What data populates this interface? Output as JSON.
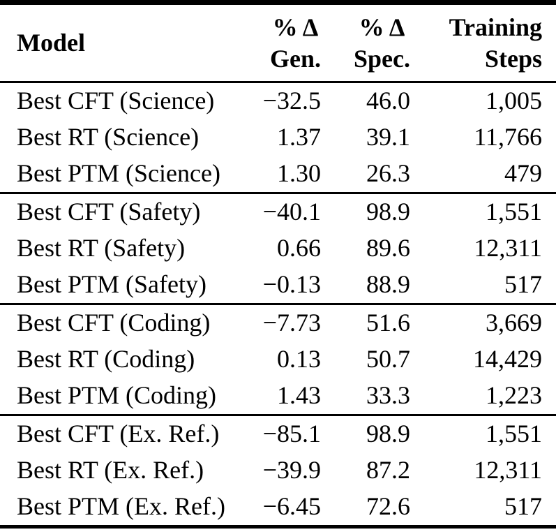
{
  "page": {
    "background_color": "#ffffff",
    "text_color": "#000000",
    "rule_color": "#000000"
  },
  "table": {
    "header": {
      "model": "Model",
      "gen_line1": "% Δ",
      "gen_line2": "Gen.",
      "spec_line1": "% Δ",
      "spec_line2": "Spec.",
      "train_line1": "Training",
      "train_line2": "Steps"
    },
    "groups": [
      {
        "name": "Science",
        "rows": [
          {
            "model": "Best CFT (Science)",
            "gen": "−32.5",
            "spec": "46.0",
            "steps": "1,005"
          },
          {
            "model": "Best RT (Science)",
            "gen": "1.37",
            "spec": "39.1",
            "steps": "11,766"
          },
          {
            "model": "Best PTM (Science)",
            "gen": "1.30",
            "spec": "26.3",
            "steps": "479"
          }
        ]
      },
      {
        "name": "Safety",
        "rows": [
          {
            "model": "Best CFT (Safety)",
            "gen": "−40.1",
            "spec": "98.9",
            "steps": "1,551"
          },
          {
            "model": "Best RT (Safety)",
            "gen": "0.66",
            "spec": "89.6",
            "steps": "12,311"
          },
          {
            "model": "Best PTM (Safety)",
            "gen": "−0.13",
            "spec": "88.9",
            "steps": "517"
          }
        ]
      },
      {
        "name": "Coding",
        "rows": [
          {
            "model": "Best CFT (Coding)",
            "gen": "−7.73",
            "spec": "51.6",
            "steps": "3,669"
          },
          {
            "model": "Best RT (Coding)",
            "gen": "0.13",
            "spec": "50.7",
            "steps": "14,429"
          },
          {
            "model": "Best PTM (Coding)",
            "gen": "1.43",
            "spec": "33.3",
            "steps": "1,223"
          }
        ]
      },
      {
        "name": "Ex. Ref.",
        "rows": [
          {
            "model": "Best CFT (Ex. Ref.)",
            "gen": "−85.1",
            "spec": "98.9",
            "steps": "1,551"
          },
          {
            "model": "Best RT (Ex. Ref.)",
            "gen": "−39.9",
            "spec": "87.2",
            "steps": "12,311"
          },
          {
            "model": "Best PTM (Ex. Ref.)",
            "gen": "−6.45",
            "spec": "72.6",
            "steps": "517"
          }
        ]
      }
    ]
  }
}
